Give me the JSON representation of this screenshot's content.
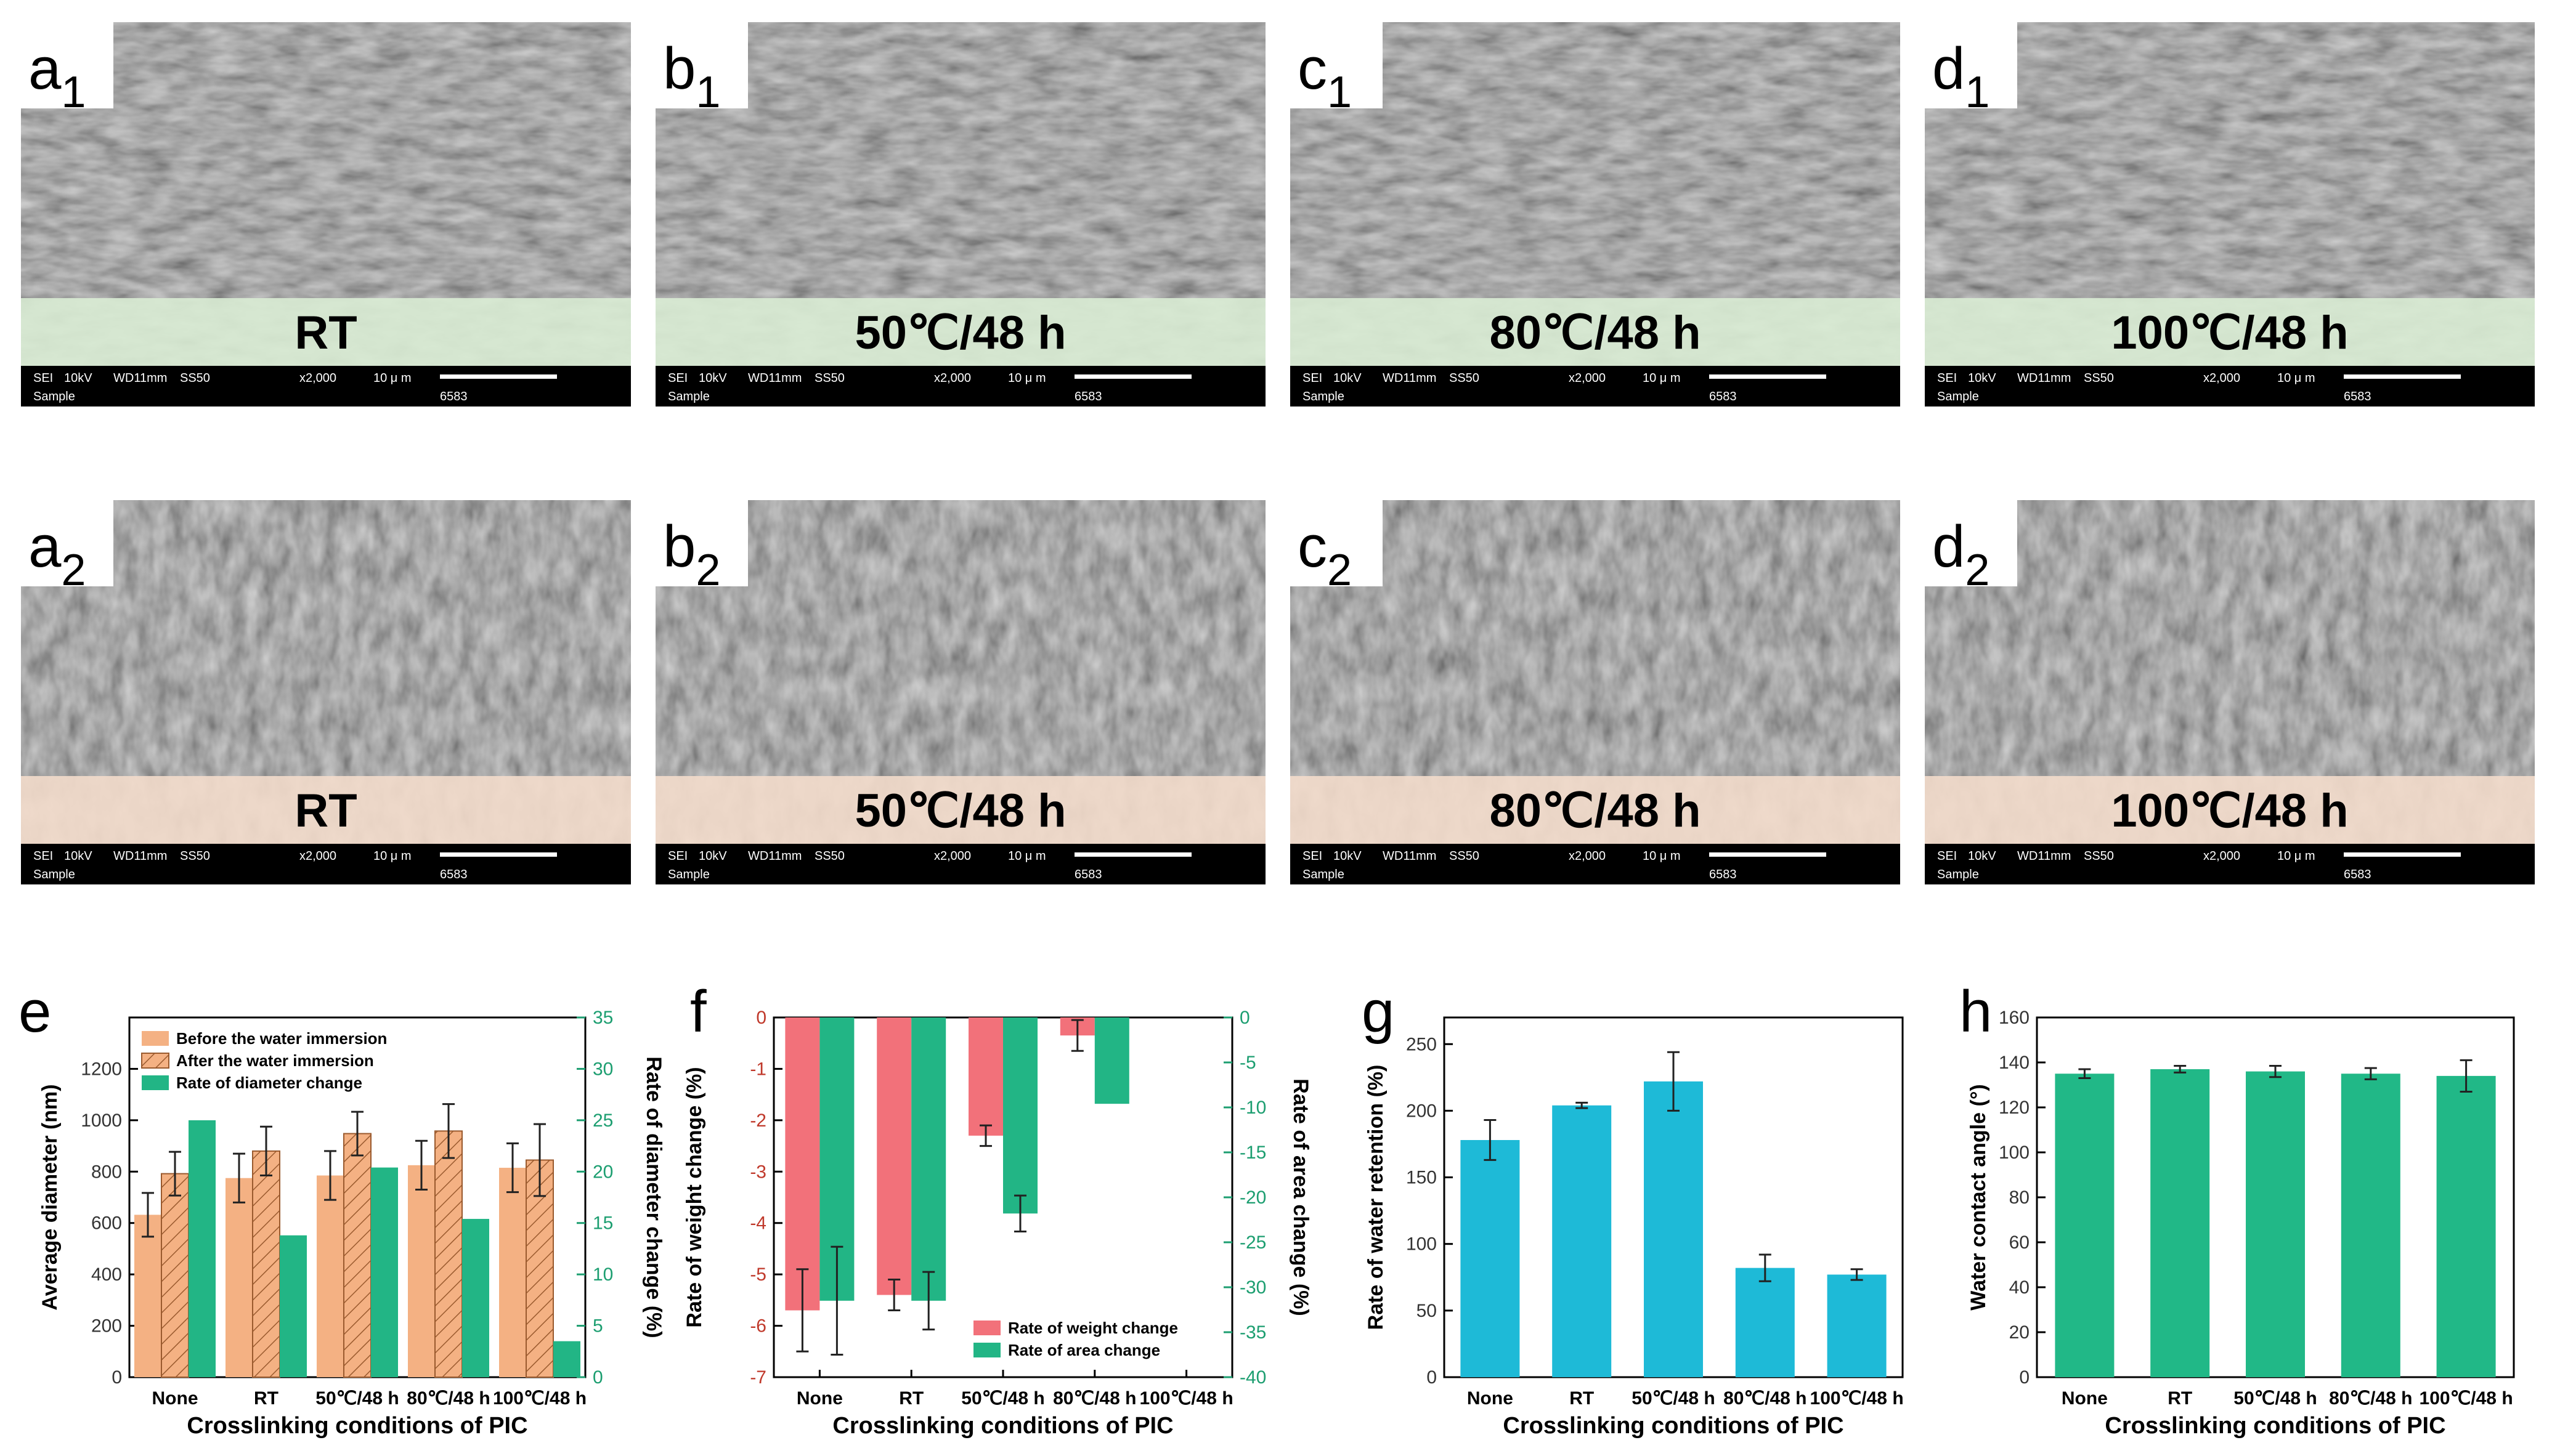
{
  "figure": {
    "sem_rows": [
      {
        "band_color": "#d9ecd4",
        "panels": [
          {
            "letter": "a",
            "subscript": "1",
            "condition": "RT"
          },
          {
            "letter": "b",
            "subscript": "1",
            "condition": "50℃/48 h"
          },
          {
            "letter": "c",
            "subscript": "1",
            "condition": "80℃/48 h"
          },
          {
            "letter": "d",
            "subscript": "1",
            "condition": "100℃/48 h"
          }
        ]
      },
      {
        "band_color": "#f3dccb",
        "panels": [
          {
            "letter": "a",
            "subscript": "2",
            "condition": "RT"
          },
          {
            "letter": "b",
            "subscript": "2",
            "condition": "50℃/48 h"
          },
          {
            "letter": "c",
            "subscript": "2",
            "condition": "80℃/48 h"
          },
          {
            "letter": "d",
            "subscript": "2",
            "condition": "100℃/48 h"
          }
        ]
      }
    ],
    "sem_info": {
      "detector": "SEI",
      "voltage": "10kV",
      "wd": "WD11mm",
      "ss": "SS50",
      "mag": "x2,000",
      "scale": "10 μ m",
      "sample": "Sample",
      "id": "6583"
    }
  },
  "chart_data": [
    {
      "panel": "e",
      "type": "bar",
      "categories": [
        "None",
        "RT",
        "50℃/48 h",
        "80℃/48 h",
        "100℃/48 h"
      ],
      "xlabel": "Crosslinking conditions of PIC",
      "ylabel": "Average diameter (nm)",
      "ylim": [
        0,
        1400
      ],
      "yticks": [
        0,
        200,
        400,
        600,
        800,
        1000,
        1200
      ],
      "y2label": "Rate of diameter change (%)",
      "y2lim": [
        0,
        35
      ],
      "y2ticks": [
        0,
        5,
        10,
        15,
        20,
        25,
        30,
        35
      ],
      "legend_position": "top-left",
      "series": [
        {
          "name": "Before the water immersion",
          "axis": "left",
          "color": "#f4b183",
          "values": [
            632,
            775,
            785,
            825,
            815
          ],
          "errors": [
            85,
            95,
            95,
            95,
            95
          ]
        },
        {
          "name": "After the water immersion",
          "axis": "left",
          "color": "#f4b183",
          "hatch": true,
          "values": [
            792,
            880,
            948,
            958,
            845
          ],
          "errors": [
            85,
            95,
            85,
            105,
            140
          ]
        },
        {
          "name": "Rate of diameter change",
          "axis": "right",
          "color": "#22b585",
          "values": [
            25.0,
            13.8,
            20.4,
            15.4,
            3.5
          ]
        }
      ]
    },
    {
      "panel": "f",
      "type": "bar",
      "categories": [
        "None",
        "RT",
        "50℃/48 h",
        "80℃/48 h",
        "100℃/48 h"
      ],
      "xlabel": "Crosslinking conditions of PIC",
      "ylabel": "Rate of weight change (%)",
      "ylim": [
        -7,
        0
      ],
      "yticks": [
        0,
        -1,
        -2,
        -3,
        -4,
        -5,
        -6,
        -7
      ],
      "y2label": "Rate of area change (%)",
      "y2lim": [
        -40,
        0
      ],
      "y2ticks": [
        0,
        -5,
        -10,
        -15,
        -20,
        -25,
        -30,
        -35,
        -40
      ],
      "legend_position": "bottom-right",
      "series": [
        {
          "name": "Rate of weight change",
          "axis": "left",
          "color": "#f2717a",
          "values": [
            -5.7,
            -5.4,
            -2.3,
            -0.35,
            0
          ],
          "errors": [
            0.8,
            0.3,
            0.2,
            0.3,
            0
          ]
        },
        {
          "name": "Rate of area change",
          "axis": "right",
          "color": "#22b585",
          "values": [
            -31.5,
            -31.5,
            -21.8,
            -9.6,
            0
          ],
          "errors": [
            6.0,
            3.2,
            2.0,
            0,
            0
          ]
        }
      ]
    },
    {
      "panel": "g",
      "type": "bar",
      "categories": [
        "None",
        "RT",
        "50℃/48 h",
        "80℃/48 h",
        "100℃/48 h"
      ],
      "xlabel": "Crosslinking conditions of PIC",
      "ylabel": "Rate of water retention (%)",
      "ylim": [
        0,
        270
      ],
      "yticks": [
        0,
        50,
        100,
        150,
        200,
        250
      ],
      "series": [
        {
          "name": "",
          "color": "#1ebad7",
          "values": [
            178,
            204,
            222,
            82,
            77
          ],
          "errors": [
            15,
            2,
            22,
            10,
            4
          ]
        }
      ]
    },
    {
      "panel": "h",
      "type": "bar",
      "categories": [
        "None",
        "RT",
        "50℃/48 h",
        "80℃/48 h",
        "100℃/48 h"
      ],
      "xlabel": "Crosslinking conditions of PIC",
      "ylabel": "Water contact angle (°)",
      "ylim": [
        0,
        160
      ],
      "yticks": [
        0,
        20,
        40,
        60,
        80,
        100,
        120,
        140,
        160
      ],
      "series": [
        {
          "name": "",
          "color": "#21b887",
          "values": [
            135,
            137,
            136,
            135,
            134
          ],
          "errors": [
            2,
            1.5,
            2.5,
            2.5,
            7
          ]
        }
      ]
    }
  ]
}
